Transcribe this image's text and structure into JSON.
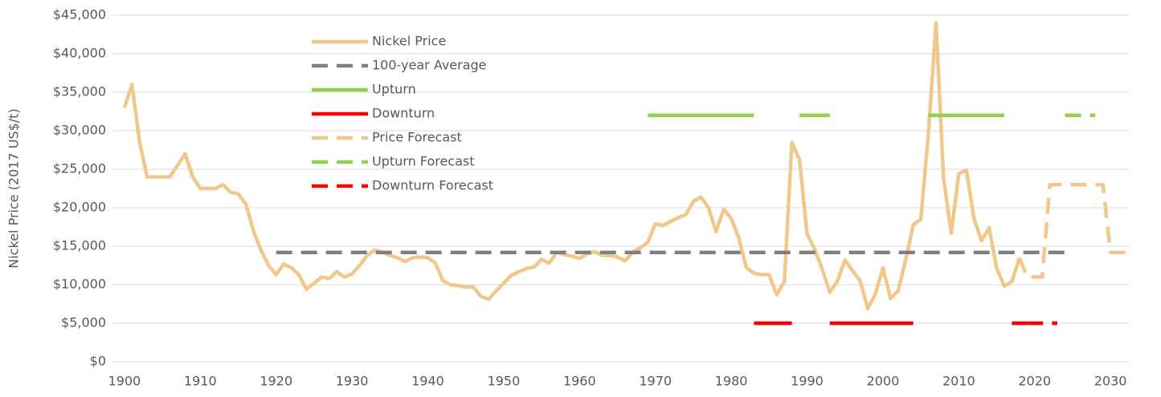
{
  "chart_data": {
    "type": "line",
    "y_label": "Nickel Price (2017 US$/t)",
    "xlim": [
      1898,
      2032
    ],
    "xticks": [
      1900,
      1910,
      1920,
      1930,
      1940,
      1950,
      1960,
      1970,
      1980,
      1990,
      2000,
      2010,
      2020,
      2030
    ],
    "ylim": [
      0,
      45000
    ],
    "yticks": [
      {
        "value": 0,
        "label": "$0"
      },
      {
        "value": 5000,
        "label": "$5,000"
      },
      {
        "value": 10000,
        "label": "$10,000"
      },
      {
        "value": 15000,
        "label": "$15,000"
      },
      {
        "value": 20000,
        "label": "$20,000"
      },
      {
        "value": 25000,
        "label": "$25,000"
      },
      {
        "value": 30000,
        "label": "$30,000"
      },
      {
        "value": 35000,
        "label": "$35,000"
      },
      {
        "value": 40000,
        "label": "$40,000"
      },
      {
        "value": 45000,
        "label": "$45,000"
      }
    ],
    "grid": true,
    "legend": "top-left",
    "series": [
      {
        "name": "Nickel Price",
        "color": "#f0c88c",
        "style": "solid",
        "x": [
          1900,
          1901,
          1902,
          1903,
          1904,
          1905,
          1906,
          1907,
          1908,
          1909,
          1910,
          1911,
          1912,
          1913,
          1914,
          1915,
          1916,
          1917,
          1918,
          1919,
          1920,
          1921,
          1922,
          1923,
          1924,
          1925,
          1926,
          1927,
          1928,
          1929,
          1930,
          1931,
          1932,
          1933,
          1934,
          1935,
          1936,
          1937,
          1938,
          1939,
          1940,
          1941,
          1942,
          1943,
          1944,
          1945,
          1946,
          1947,
          1948,
          1949,
          1950,
          1951,
          1952,
          1953,
          1954,
          1955,
          1956,
          1957,
          1958,
          1959,
          1960,
          1961,
          1962,
          1963,
          1964,
          1965,
          1966,
          1967,
          1968,
          1969,
          1970,
          1971,
          1972,
          1973,
          1974,
          1975,
          1976,
          1977,
          1978,
          1979,
          1980,
          1981,
          1982,
          1983,
          1984,
          1985,
          1986,
          1987,
          1988,
          1989,
          1990,
          1991,
          1992,
          1993,
          1994,
          1995,
          1996,
          1997,
          1998,
          1999,
          2000,
          2001,
          2002,
          2003,
          2004,
          2005,
          2006,
          2007,
          2008,
          2009,
          2010,
          2011,
          2012,
          2013,
          2014,
          2015,
          2016,
          2017,
          2018
        ],
        "values": [
          33000,
          36000,
          28500,
          24000,
          24000,
          24000,
          24000,
          25500,
          27000,
          24000,
          22500,
          22500,
          22500,
          23000,
          22000,
          21800,
          20500,
          17000,
          14500,
          12500,
          11300,
          12700,
          12200,
          11300,
          9400,
          10200,
          11000,
          10800,
          11700,
          11000,
          11400,
          12500,
          13800,
          14500,
          14200,
          13800,
          13500,
          13000,
          13500,
          13600,
          13500,
          12800,
          10500,
          10000,
          9900,
          9700,
          9700,
          8500,
          8100,
          9200,
          10200,
          11200,
          11700,
          12100,
          12300,
          13300,
          12800,
          14200,
          13900,
          13700,
          13400,
          14000,
          14300,
          13800,
          13800,
          13600,
          13100,
          14200,
          14800,
          15500,
          17900,
          17700,
          18200,
          18700,
          19100,
          20800,
          21400,
          20000,
          16900,
          19800,
          18600,
          16100,
          12200,
          11500,
          11300,
          11300,
          8700,
          10400,
          28500,
          26200,
          16600,
          14600,
          12000,
          9000,
          10500,
          13200,
          11800,
          10500,
          6900,
          8800,
          12200,
          8200,
          9200,
          13200,
          17800,
          18500,
          29800,
          44000,
          23800,
          16700,
          24400,
          24900,
          18600,
          15700,
          17400,
          12100,
          9800,
          10400,
          13500
        ]
      },
      {
        "name": "100-year Average",
        "color": "#7f7f7f",
        "style": "dashed",
        "x": [
          1920,
          2024
        ],
        "values": [
          14200,
          14200
        ]
      },
      {
        "name": "Upturn",
        "color": "#92d050",
        "style": "solid",
        "x": [
          1969,
          1983,
          1986,
          1989,
          1993,
          2000,
          2006,
          2016
        ],
        "values": [
          32000,
          32000,
          null,
          32000,
          32000,
          null,
          32000,
          32000
        ]
      },
      {
        "name": "Downturn",
        "color": "#ff0000",
        "style": "solid",
        "x": [
          1983,
          1988,
          1990,
          1993,
          2004,
          2010,
          2017,
          2019
        ],
        "values": [
          5000,
          5000,
          null,
          5000,
          5000,
          null,
          5000,
          5000
        ]
      },
      {
        "name": "Price Forecast",
        "color": "#f0c88c",
        "style": "dashed",
        "x": [
          2018,
          2019,
          2021,
          2022,
          2029,
          2030,
          2032
        ],
        "values": [
          13500,
          11000,
          11000,
          23000,
          23000,
          14200,
          14200
        ]
      },
      {
        "name": "Upturn Forecast",
        "color": "#92d050",
        "style": "dashed",
        "x": [
          2024,
          2028
        ],
        "values": [
          32000,
          32000
        ]
      },
      {
        "name": "Downturn Forecast",
        "color": "#ff0000",
        "style": "dashed",
        "x": [
          2019,
          2023
        ],
        "values": [
          5000,
          5000
        ]
      }
    ]
  }
}
